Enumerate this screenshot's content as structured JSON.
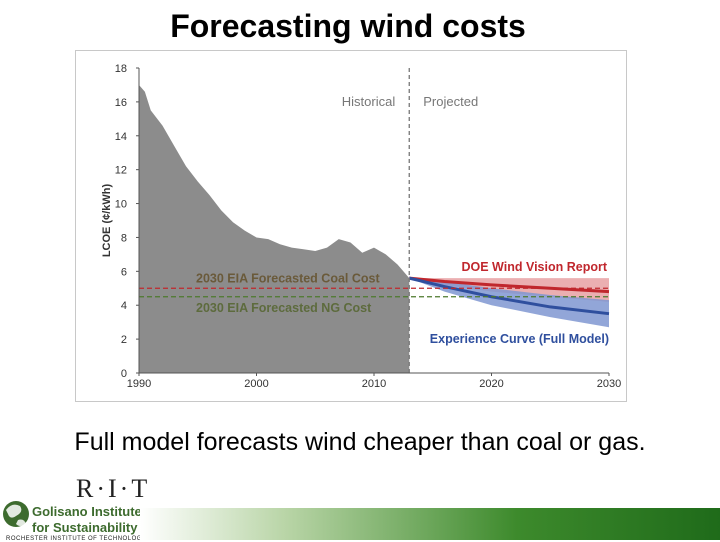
{
  "slide": {
    "title": "Forecasting wind costs",
    "caption": "Full model forecasts wind cheaper than coal or gas."
  },
  "logo": {
    "rit": "R·I·T",
    "line1": "Golisano Institute",
    "line2": "for Sustainability",
    "line3": "ROCHESTER INSTITUTE OF TECHNOLOGY"
  },
  "chart_data": {
    "type": "area",
    "title": "",
    "xlabel": "",
    "ylabel": "LCOE (¢/kWh)",
    "xlim": [
      1990,
      2030
    ],
    "ylim": [
      0,
      18
    ],
    "x_ticks": [
      1990,
      2000,
      2010,
      2020,
      2030
    ],
    "y_ticks": [
      0,
      2,
      4,
      6,
      8,
      10,
      12,
      14,
      16,
      18
    ],
    "grid": false,
    "divider_x": 2013,
    "region_labels": {
      "left": "Historical",
      "right": "Projected"
    },
    "historical": {
      "x": [
        1990,
        1990.5,
        1991,
        1992,
        1993,
        1994,
        1995,
        1996,
        1997,
        1998,
        1999,
        2000,
        2001,
        2002,
        2003,
        2004,
        2005,
        2006,
        2007,
        2008,
        2009,
        2010,
        2011,
        2012,
        2013
      ],
      "y": [
        17.0,
        16.6,
        15.5,
        14.6,
        13.4,
        12.2,
        11.3,
        10.5,
        9.6,
        8.9,
        8.4,
        8.0,
        7.9,
        7.6,
        7.4,
        7.3,
        7.2,
        7.4,
        7.9,
        7.7,
        7.1,
        7.4,
        7.0,
        6.4,
        5.6
      ]
    },
    "series": [
      {
        "name": "DOE Wind Vision Report",
        "color": "#c0272d",
        "band_color": "#e8a1a3",
        "x": [
          2013,
          2016,
          2020,
          2025,
          2030
        ],
        "y": [
          5.6,
          5.4,
          5.2,
          5.0,
          4.8
        ],
        "upper": [
          5.6,
          5.6,
          5.6,
          5.6,
          5.6
        ],
        "lower": [
          5.6,
          5.2,
          4.8,
          4.5,
          4.2
        ]
      },
      {
        "name": "Experience Curve (Full Model)",
        "color": "#2f4f9e",
        "band_color": "#7f97d1",
        "x": [
          2013,
          2016,
          2020,
          2025,
          2030
        ],
        "y": [
          5.6,
          5.1,
          4.5,
          3.9,
          3.5
        ],
        "upper": [
          5.6,
          5.4,
          5.0,
          4.6,
          4.3
        ],
        "lower": [
          5.6,
          4.8,
          4.0,
          3.3,
          2.7
        ]
      }
    ],
    "reference_lines": [
      {
        "name": "2030 EIA Forecasted Coal Cost",
        "y": 5.0,
        "color": "#c0272d"
      },
      {
        "name": "2030 EIA Forecasted NG Cost",
        "y": 4.5,
        "color": "#4d7a2c"
      }
    ]
  }
}
